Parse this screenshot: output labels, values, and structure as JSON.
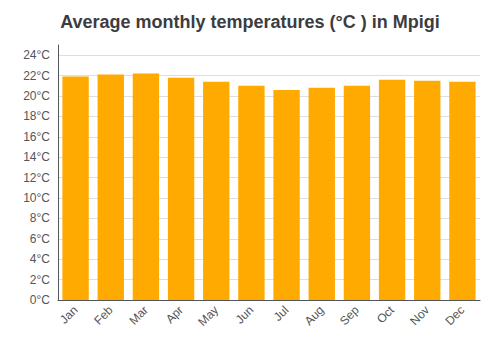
{
  "chart_data": {
    "type": "bar",
    "title": "Average monthly temperatures (°C ) in Mpigi",
    "categories": [
      "Jan",
      "Feb",
      "Mar",
      "Apr",
      "May",
      "Jun",
      "Jul",
      "Aug",
      "Sep",
      "Oct",
      "Nov",
      "Dec"
    ],
    "values": [
      21.9,
      22.1,
      22.2,
      21.8,
      21.4,
      21.0,
      20.6,
      20.8,
      21.0,
      21.6,
      21.5,
      21.4
    ],
    "color": "#FFAA00",
    "ylim": [
      0,
      25
    ],
    "yticks": [
      {
        "value": 0,
        "label": "0°C"
      },
      {
        "value": 2,
        "label": "2°C"
      },
      {
        "value": 4,
        "label": "4°C"
      },
      {
        "value": 6,
        "label": "6°C"
      },
      {
        "value": 8,
        "label": "8°C"
      },
      {
        "value": 10,
        "label": "10°C"
      },
      {
        "value": 12,
        "label": "12°C"
      },
      {
        "value": 14,
        "label": "14°C"
      },
      {
        "value": 16,
        "label": "16°C"
      },
      {
        "value": 18,
        "label": "18°C"
      },
      {
        "value": 20,
        "label": "20°C"
      },
      {
        "value": 22,
        "label": "22°C"
      },
      {
        "value": 24,
        "label": "24°C"
      }
    ],
    "grid": true
  }
}
